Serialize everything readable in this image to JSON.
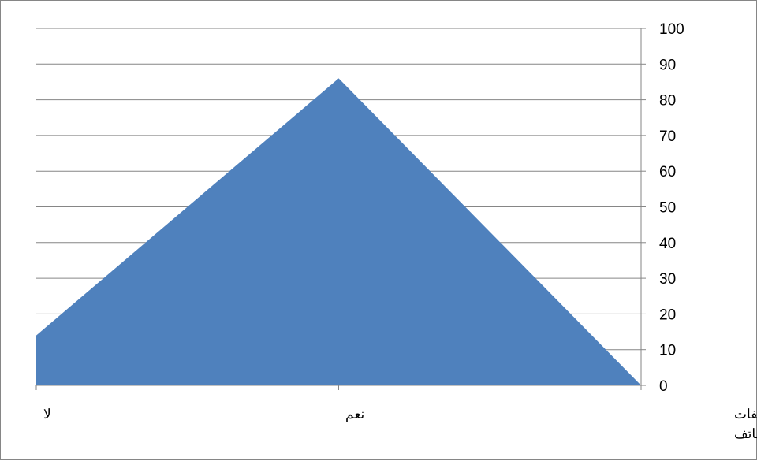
{
  "chart_data": {
    "type": "area",
    "categories": [
      "لا",
      "نعم",
      "هل تقوم بارتكاب مخالفات مروريه اثناء استخدامك للهاتف"
    ],
    "category_lines": [
      [
        "لا"
      ],
      [
        "نعم"
      ],
      [
        "هل تقوم بارتكاب مخالفات",
        "مروريه اثناء استخدامك للهاتف"
      ]
    ],
    "values": [
      14,
      86,
      0
    ],
    "ylim": [
      0,
      100
    ],
    "yticks": [
      "0",
      "10",
      "20",
      "30",
      "40",
      "50",
      "60",
      "70",
      "80",
      "90",
      "100"
    ],
    "y_axis_position": "right",
    "grid": true,
    "legend": "none",
    "colors": {
      "fill": "#4f81bd",
      "grid": "#868686",
      "axis": "#868686"
    }
  }
}
